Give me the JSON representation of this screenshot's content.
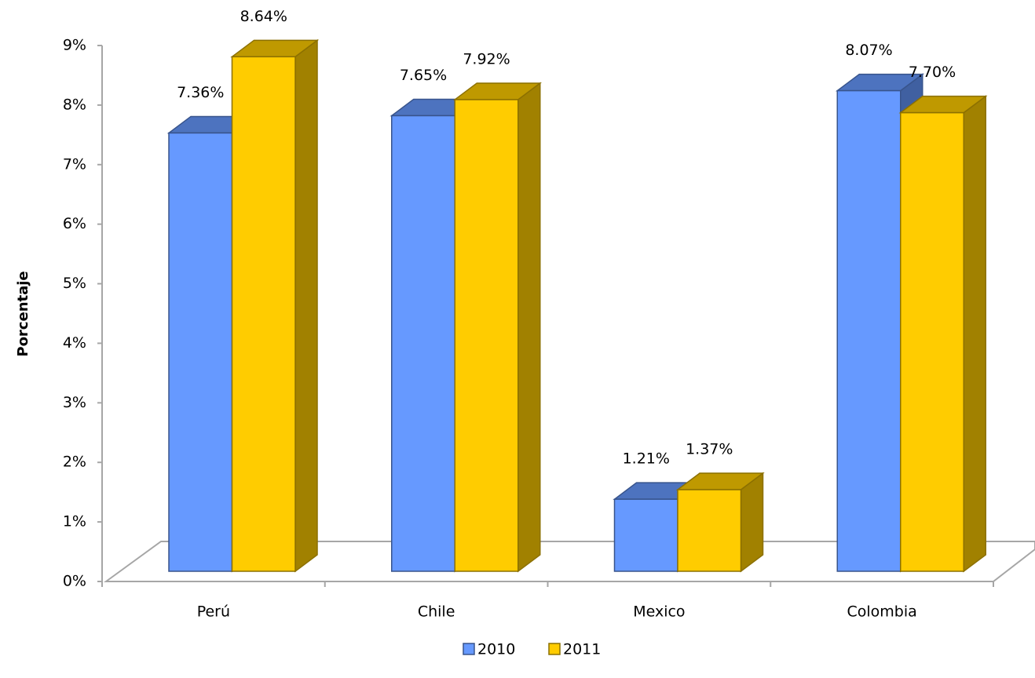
{
  "chart_data": {
    "type": "bar3d",
    "y_label": "Porcentaje",
    "categories": [
      "Perú",
      "Chile",
      "Mexico",
      "Colombia"
    ],
    "series": [
      {
        "name": "2010",
        "color": "#6699ff",
        "values": [
          7.36,
          7.65,
          1.21,
          8.07
        ],
        "value_labels": [
          "7.36%",
          "7.65%",
          "1.21%",
          "8.07%"
        ]
      },
      {
        "name": "2011",
        "color": "#ffcc00",
        "values": [
          8.64,
          7.92,
          1.37,
          7.7
        ],
        "value_labels": [
          "8.64%",
          "7.92%",
          "1.37%",
          "7.70%"
        ]
      }
    ],
    "ylim": [
      0,
      9
    ],
    "yticks": [
      {
        "value": 0,
        "label": "0%"
      },
      {
        "value": 1,
        "label": "1%"
      },
      {
        "value": 2,
        "label": "2%"
      },
      {
        "value": 3,
        "label": "3%"
      },
      {
        "value": 4,
        "label": "4%"
      },
      {
        "value": 5,
        "label": "5%"
      },
      {
        "value": 6,
        "label": "6%"
      },
      {
        "value": 7,
        "label": "7%"
      },
      {
        "value": 8,
        "label": "8%"
      },
      {
        "value": 9,
        "label": "9%"
      }
    ],
    "legend": "bottom"
  }
}
